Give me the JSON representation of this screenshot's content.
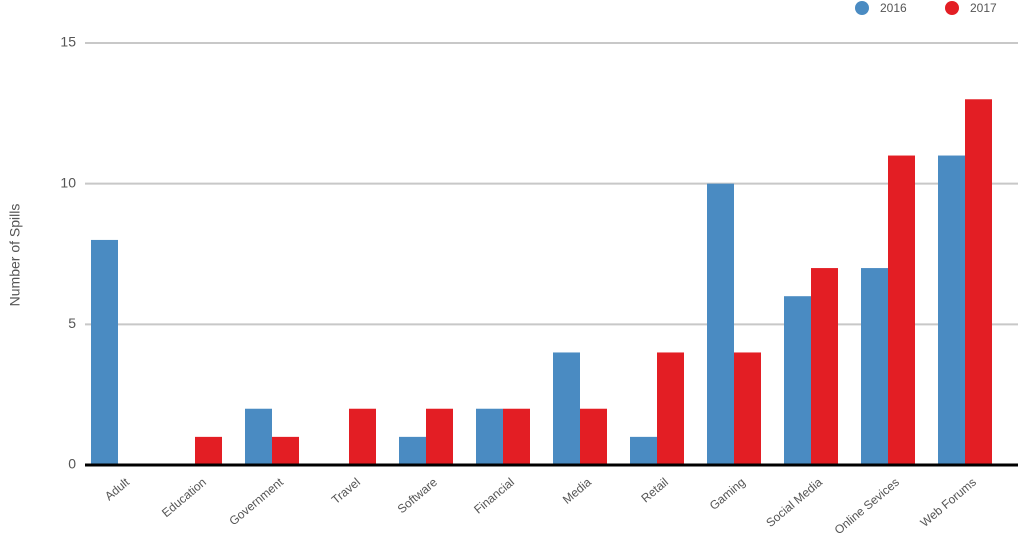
{
  "chart_data": {
    "type": "bar",
    "y_label": "Number of Spills",
    "categories": [
      "Adult",
      "Education",
      "Government",
      "Travel",
      "Software",
      "Financial",
      "Media",
      "Retail",
      "Gaming",
      "Social Media",
      "Online Sevices",
      "Web Forums"
    ],
    "series": [
      {
        "name": "2016",
        "color": "#4a8bc2",
        "values": [
          8,
          0,
          2,
          0,
          1,
          2,
          4,
          1,
          10,
          6,
          7,
          11
        ]
      },
      {
        "name": "2017",
        "color": "#e31e24",
        "values": [
          0,
          1,
          1,
          2,
          2,
          2,
          2,
          4,
          4,
          7,
          11,
          13
        ]
      }
    ],
    "ylim": [
      0,
      15
    ],
    "yticks": [
      0,
      5,
      10,
      15
    ],
    "grid": true,
    "legend": "top-right"
  }
}
